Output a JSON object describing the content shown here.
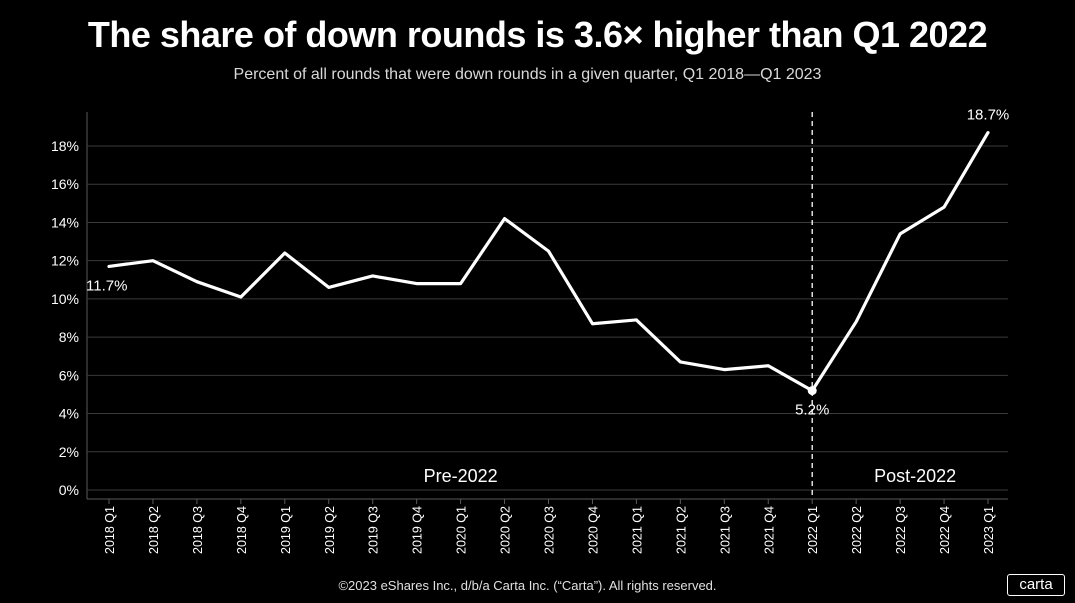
{
  "title": "The share of down rounds is 3.6× higher than Q1 2022",
  "subtitle": "Percent of all rounds that were down rounds in a given quarter, Q1 2018—Q1 2023",
  "footer": "©2023 eShares Inc., d/b/a Carta Inc. (“Carta”). All rights reserved.",
  "logo": "carta",
  "colors": {
    "background": "#000000",
    "line": "#ffffff",
    "grid": "#3a3a3a",
    "text": "#ffffff"
  },
  "chart_data": {
    "type": "line",
    "title": "The share of down rounds is 3.6× higher than Q1 2022",
    "xlabel": "",
    "ylabel": "",
    "ylim": [
      0,
      19
    ],
    "yticks": [
      0,
      2,
      4,
      6,
      8,
      10,
      12,
      14,
      16,
      18
    ],
    "ytick_labels": [
      "0%",
      "2%",
      "4%",
      "6%",
      "8%",
      "10%",
      "12%",
      "14%",
      "16%",
      "18%"
    ],
    "grid": true,
    "categories": [
      "2018 Q1",
      "2018 Q2",
      "2018 Q3",
      "2018 Q4",
      "2019 Q1",
      "2019 Q2",
      "2019 Q3",
      "2019 Q4",
      "2020 Q1",
      "2020 Q2",
      "2020 Q3",
      "2020 Q4",
      "2021 Q1",
      "2021 Q2",
      "2021 Q3",
      "2021 Q4",
      "2022 Q1",
      "2022 Q2",
      "2022 Q3",
      "2022 Q4",
      "2023 Q1"
    ],
    "series": [
      {
        "values": [
          11.7,
          12.0,
          10.9,
          10.1,
          12.4,
          10.6,
          11.2,
          10.8,
          10.8,
          14.2,
          12.5,
          8.7,
          8.9,
          6.7,
          6.3,
          6.5,
          5.2,
          8.8,
          13.4,
          14.8,
          18.7
        ]
      }
    ],
    "divider": {
      "at": "2022 Q1",
      "style": "dashed"
    },
    "annotations": [
      {
        "category": "2018 Q1",
        "text": "11.7%"
      },
      {
        "category": "2022 Q1",
        "text": "5.2%"
      },
      {
        "category": "2023 Q1",
        "text": "18.7%"
      }
    ],
    "regions": [
      {
        "label": "Pre-2022"
      },
      {
        "label": "Post-2022"
      }
    ]
  }
}
